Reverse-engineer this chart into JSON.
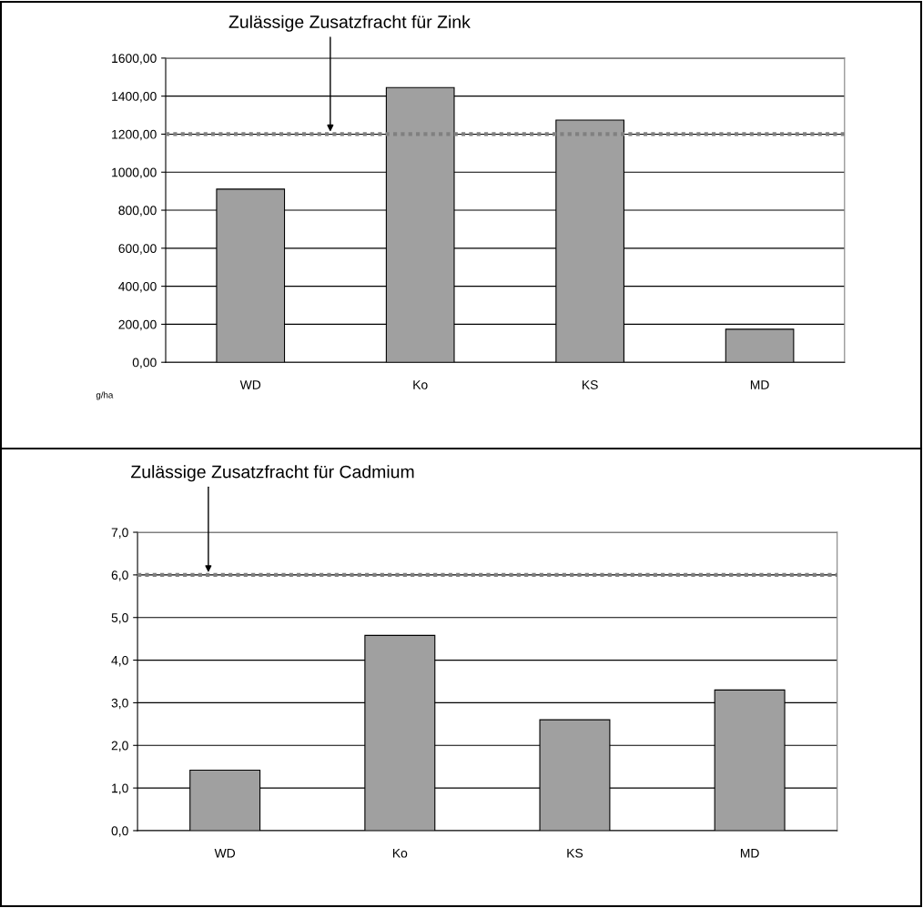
{
  "chart_data": [
    {
      "type": "bar",
      "categories": [
        "WD",
        "Ko",
        "KS",
        "MD"
      ],
      "ylabel": "g/ha",
      "series": [
        {
          "color": "#a0a0a0",
          "values": [
            911,
            1445,
            1274,
            174
          ]
        }
      ],
      "ylim": [
        0,
        1600
      ],
      "yticks": [
        {
          "value": 0,
          "label": "0,00"
        },
        {
          "value": 200,
          "label": "200,00"
        },
        {
          "value": 400,
          "label": "400,00"
        },
        {
          "value": 600,
          "label": "600,00"
        },
        {
          "value": 800,
          "label": "800,00"
        },
        {
          "value": 1000,
          "label": "1000,00"
        },
        {
          "value": 1200,
          "label": "1200,00"
        },
        {
          "value": 1400,
          "label": "1400,00"
        },
        {
          "value": 1600,
          "label": "1600,00"
        }
      ],
      "grid": "y",
      "ref_lines": [
        {
          "axis": "y",
          "value": 1200,
          "label": "Zulässige Zusatzfracht für Zink",
          "color": "#808080",
          "line_style": "dotted"
        }
      ]
    },
    {
      "type": "bar",
      "categories": [
        "WD",
        "Ko",
        "KS",
        "MD"
      ],
      "series": [
        {
          "color": "#a0a0a0",
          "values": [
            1.42,
            4.58,
            2.6,
            3.3
          ]
        }
      ],
      "ylim": [
        0,
        7
      ],
      "yticks": [
        {
          "value": 0,
          "label": "0,0"
        },
        {
          "value": 1,
          "label": "1,0"
        },
        {
          "value": 2,
          "label": "2,0"
        },
        {
          "value": 3,
          "label": "3,0"
        },
        {
          "value": 4,
          "label": "4,0"
        },
        {
          "value": 5,
          "label": "5,0"
        },
        {
          "value": 6,
          "label": "6,0"
        },
        {
          "value": 7,
          "label": "7,0"
        }
      ],
      "grid": "y",
      "ref_lines": [
        {
          "axis": "y",
          "value": 6,
          "label": "Zulässige Zusatzfracht für Cadmium",
          "color": "#808080",
          "line_style": "dotted"
        }
      ]
    }
  ]
}
